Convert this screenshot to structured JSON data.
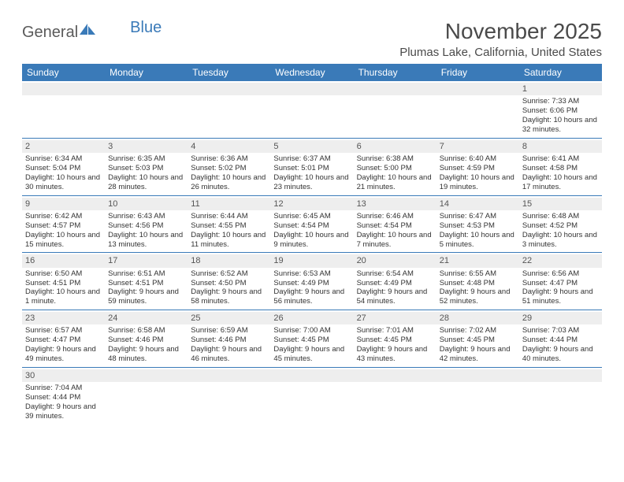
{
  "logo": {
    "part1": "General",
    "part2": "Blue"
  },
  "title": "November 2025",
  "location": "Plumas Lake, California, United States",
  "colors": {
    "header_bg": "#3a7ab8",
    "header_text": "#ffffff",
    "daynum_bg": "#eeeeee",
    "border": "#3a7ab8",
    "logo_gray": "#5a5a5a",
    "logo_blue": "#3a7ab8"
  },
  "weekdays": [
    "Sunday",
    "Monday",
    "Tuesday",
    "Wednesday",
    "Thursday",
    "Friday",
    "Saturday"
  ],
  "weeks": [
    [
      {
        "n": "",
        "sr": "",
        "ss": "",
        "dl": ""
      },
      {
        "n": "",
        "sr": "",
        "ss": "",
        "dl": ""
      },
      {
        "n": "",
        "sr": "",
        "ss": "",
        "dl": ""
      },
      {
        "n": "",
        "sr": "",
        "ss": "",
        "dl": ""
      },
      {
        "n": "",
        "sr": "",
        "ss": "",
        "dl": ""
      },
      {
        "n": "",
        "sr": "",
        "ss": "",
        "dl": ""
      },
      {
        "n": "1",
        "sr": "Sunrise: 7:33 AM",
        "ss": "Sunset: 6:06 PM",
        "dl": "Daylight: 10 hours and 32 minutes."
      }
    ],
    [
      {
        "n": "2",
        "sr": "Sunrise: 6:34 AM",
        "ss": "Sunset: 5:04 PM",
        "dl": "Daylight: 10 hours and 30 minutes."
      },
      {
        "n": "3",
        "sr": "Sunrise: 6:35 AM",
        "ss": "Sunset: 5:03 PM",
        "dl": "Daylight: 10 hours and 28 minutes."
      },
      {
        "n": "4",
        "sr": "Sunrise: 6:36 AM",
        "ss": "Sunset: 5:02 PM",
        "dl": "Daylight: 10 hours and 26 minutes."
      },
      {
        "n": "5",
        "sr": "Sunrise: 6:37 AM",
        "ss": "Sunset: 5:01 PM",
        "dl": "Daylight: 10 hours and 23 minutes."
      },
      {
        "n": "6",
        "sr": "Sunrise: 6:38 AM",
        "ss": "Sunset: 5:00 PM",
        "dl": "Daylight: 10 hours and 21 minutes."
      },
      {
        "n": "7",
        "sr": "Sunrise: 6:40 AM",
        "ss": "Sunset: 4:59 PM",
        "dl": "Daylight: 10 hours and 19 minutes."
      },
      {
        "n": "8",
        "sr": "Sunrise: 6:41 AM",
        "ss": "Sunset: 4:58 PM",
        "dl": "Daylight: 10 hours and 17 minutes."
      }
    ],
    [
      {
        "n": "9",
        "sr": "Sunrise: 6:42 AM",
        "ss": "Sunset: 4:57 PM",
        "dl": "Daylight: 10 hours and 15 minutes."
      },
      {
        "n": "10",
        "sr": "Sunrise: 6:43 AM",
        "ss": "Sunset: 4:56 PM",
        "dl": "Daylight: 10 hours and 13 minutes."
      },
      {
        "n": "11",
        "sr": "Sunrise: 6:44 AM",
        "ss": "Sunset: 4:55 PM",
        "dl": "Daylight: 10 hours and 11 minutes."
      },
      {
        "n": "12",
        "sr": "Sunrise: 6:45 AM",
        "ss": "Sunset: 4:54 PM",
        "dl": "Daylight: 10 hours and 9 minutes."
      },
      {
        "n": "13",
        "sr": "Sunrise: 6:46 AM",
        "ss": "Sunset: 4:54 PM",
        "dl": "Daylight: 10 hours and 7 minutes."
      },
      {
        "n": "14",
        "sr": "Sunrise: 6:47 AM",
        "ss": "Sunset: 4:53 PM",
        "dl": "Daylight: 10 hours and 5 minutes."
      },
      {
        "n": "15",
        "sr": "Sunrise: 6:48 AM",
        "ss": "Sunset: 4:52 PM",
        "dl": "Daylight: 10 hours and 3 minutes."
      }
    ],
    [
      {
        "n": "16",
        "sr": "Sunrise: 6:50 AM",
        "ss": "Sunset: 4:51 PM",
        "dl": "Daylight: 10 hours and 1 minute."
      },
      {
        "n": "17",
        "sr": "Sunrise: 6:51 AM",
        "ss": "Sunset: 4:51 PM",
        "dl": "Daylight: 9 hours and 59 minutes."
      },
      {
        "n": "18",
        "sr": "Sunrise: 6:52 AM",
        "ss": "Sunset: 4:50 PM",
        "dl": "Daylight: 9 hours and 58 minutes."
      },
      {
        "n": "19",
        "sr": "Sunrise: 6:53 AM",
        "ss": "Sunset: 4:49 PM",
        "dl": "Daylight: 9 hours and 56 minutes."
      },
      {
        "n": "20",
        "sr": "Sunrise: 6:54 AM",
        "ss": "Sunset: 4:49 PM",
        "dl": "Daylight: 9 hours and 54 minutes."
      },
      {
        "n": "21",
        "sr": "Sunrise: 6:55 AM",
        "ss": "Sunset: 4:48 PM",
        "dl": "Daylight: 9 hours and 52 minutes."
      },
      {
        "n": "22",
        "sr": "Sunrise: 6:56 AM",
        "ss": "Sunset: 4:47 PM",
        "dl": "Daylight: 9 hours and 51 minutes."
      }
    ],
    [
      {
        "n": "23",
        "sr": "Sunrise: 6:57 AM",
        "ss": "Sunset: 4:47 PM",
        "dl": "Daylight: 9 hours and 49 minutes."
      },
      {
        "n": "24",
        "sr": "Sunrise: 6:58 AM",
        "ss": "Sunset: 4:46 PM",
        "dl": "Daylight: 9 hours and 48 minutes."
      },
      {
        "n": "25",
        "sr": "Sunrise: 6:59 AM",
        "ss": "Sunset: 4:46 PM",
        "dl": "Daylight: 9 hours and 46 minutes."
      },
      {
        "n": "26",
        "sr": "Sunrise: 7:00 AM",
        "ss": "Sunset: 4:45 PM",
        "dl": "Daylight: 9 hours and 45 minutes."
      },
      {
        "n": "27",
        "sr": "Sunrise: 7:01 AM",
        "ss": "Sunset: 4:45 PM",
        "dl": "Daylight: 9 hours and 43 minutes."
      },
      {
        "n": "28",
        "sr": "Sunrise: 7:02 AM",
        "ss": "Sunset: 4:45 PM",
        "dl": "Daylight: 9 hours and 42 minutes."
      },
      {
        "n": "29",
        "sr": "Sunrise: 7:03 AM",
        "ss": "Sunset: 4:44 PM",
        "dl": "Daylight: 9 hours and 40 minutes."
      }
    ],
    [
      {
        "n": "30",
        "sr": "Sunrise: 7:04 AM",
        "ss": "Sunset: 4:44 PM",
        "dl": "Daylight: 9 hours and 39 minutes."
      },
      {
        "n": "",
        "sr": "",
        "ss": "",
        "dl": ""
      },
      {
        "n": "",
        "sr": "",
        "ss": "",
        "dl": ""
      },
      {
        "n": "",
        "sr": "",
        "ss": "",
        "dl": ""
      },
      {
        "n": "",
        "sr": "",
        "ss": "",
        "dl": ""
      },
      {
        "n": "",
        "sr": "",
        "ss": "",
        "dl": ""
      },
      {
        "n": "",
        "sr": "",
        "ss": "",
        "dl": ""
      }
    ]
  ]
}
